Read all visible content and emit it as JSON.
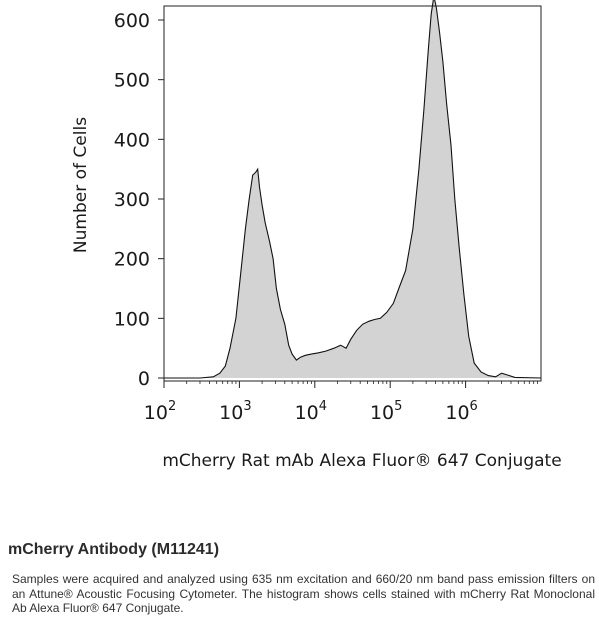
{
  "chart_data": {
    "type": "area",
    "xscale": "log",
    "xlim": [
      100,
      10000000
    ],
    "ylim": [
      0,
      650
    ],
    "ylabel": "Number of Cells",
    "xlabel": "mCherry Rat  mAb Alexa Fluor® 647 Conjugate",
    "yticks": [
      0,
      100,
      200,
      300,
      400,
      500,
      600
    ],
    "xticks": [
      {
        "value": 100,
        "base": "10",
        "exp": "2"
      },
      {
        "value": 1000,
        "base": "10",
        "exp": "3"
      },
      {
        "value": 10000,
        "base": "10",
        "exp": "4"
      },
      {
        "value": 100000,
        "base": "10",
        "exp": "5"
      },
      {
        "value": 1000000,
        "base": "10",
        "exp": "6"
      }
    ],
    "fill_color": "#d3d3d3",
    "line_color": "#111111",
    "x": [
      100,
      300,
      450,
      550,
      650,
      750,
      900,
      1050,
      1200,
      1350,
      1500,
      1650,
      1750,
      1850,
      2000,
      2200,
      2500,
      2800,
      3100,
      3500,
      4000,
      4500,
      5000,
      5700,
      6500,
      7500,
      9000,
      11000,
      14000,
      18000,
      22000,
      26000,
      30000,
      36000,
      43000,
      52000,
      62000,
      74000,
      90000,
      110000,
      130000,
      160000,
      200000,
      240000,
      280000,
      320000,
      350000,
      380000,
      410000,
      450000,
      500000,
      560000,
      640000,
      720000,
      820000,
      950000,
      1100000,
      1300000,
      1600000,
      2000000,
      2500000,
      3000000,
      3600000,
      4500000,
      10000000
    ],
    "y": [
      0,
      0,
      2,
      8,
      20,
      50,
      100,
      180,
      250,
      300,
      340,
      345,
      350,
      320,
      290,
      260,
      230,
      200,
      150,
      115,
      90,
      55,
      40,
      30,
      35,
      38,
      40,
      42,
      45,
      50,
      55,
      50,
      65,
      80,
      90,
      95,
      98,
      100,
      110,
      125,
      150,
      180,
      250,
      350,
      450,
      550,
      610,
      640,
      620,
      580,
      530,
      460,
      390,
      300,
      220,
      140,
      70,
      25,
      10,
      4,
      2,
      8,
      5,
      1,
      0
    ]
  },
  "caption": {
    "title": "mCherry Antibody (M11241)",
    "body": "Samples were acquired and analyzed using 635 nm excitation and 660/20 nm band pass emission filters on an Attune® Acoustic Focusing Cytometer. The histogram shows cells stained with mCherry Rat Monoclonal Ab Alexa Fluor® 647 Conjugate."
  }
}
